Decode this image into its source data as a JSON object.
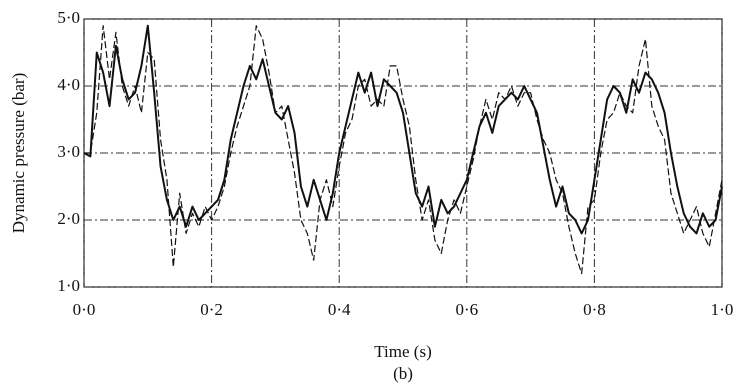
{
  "chart_data": {
    "type": "line",
    "xlabel": "Time (s)",
    "ylabel": "Dynamic pressure (bar)",
    "caption": "(b)",
    "x": [
      0,
      0.01,
      0.02,
      0.03,
      0.04,
      0.05,
      0.06,
      0.07,
      0.08,
      0.09,
      0.1,
      0.11,
      0.12,
      0.13,
      0.14,
      0.15,
      0.16,
      0.17,
      0.18,
      0.19,
      0.2,
      0.21,
      0.22,
      0.23,
      0.24,
      0.25,
      0.26,
      0.27,
      0.28,
      0.29,
      0.3,
      0.31,
      0.32,
      0.33,
      0.34,
      0.35,
      0.36,
      0.37,
      0.38,
      0.39,
      0.4,
      0.41,
      0.42,
      0.43,
      0.44,
      0.45,
      0.46,
      0.47,
      0.48,
      0.49,
      0.5,
      0.51,
      0.52,
      0.53,
      0.54,
      0.55,
      0.56,
      0.57,
      0.58,
      0.59,
      0.6,
      0.61,
      0.62,
      0.63,
      0.64,
      0.65,
      0.66,
      0.67,
      0.68,
      0.69,
      0.7,
      0.71,
      0.72,
      0.73,
      0.74,
      0.75,
      0.76,
      0.77,
      0.78,
      0.79,
      0.8,
      0.81,
      0.82,
      0.83,
      0.84,
      0.85,
      0.86,
      0.87,
      0.88,
      0.89,
      0.9,
      0.91,
      0.92,
      0.93,
      0.94,
      0.95,
      0.96,
      0.97,
      0.98,
      0.99,
      1
    ],
    "series": [
      {
        "color": "#111111",
        "line_style": "solid",
        "values": [
          3.0,
          2.95,
          4.5,
          4.2,
          3.7,
          4.6,
          4.1,
          3.8,
          3.9,
          4.3,
          4.9,
          3.9,
          2.8,
          2.3,
          2.0,
          2.2,
          1.9,
          2.2,
          2.0,
          2.1,
          2.2,
          2.3,
          2.6,
          3.2,
          3.6,
          4.0,
          4.3,
          4.1,
          4.4,
          4.0,
          3.6,
          3.5,
          3.7,
          3.3,
          2.5,
          2.2,
          2.6,
          2.3,
          2.0,
          2.4,
          3.0,
          3.4,
          3.8,
          4.2,
          3.9,
          4.2,
          3.7,
          4.1,
          4.0,
          3.9,
          3.6,
          3.0,
          2.4,
          2.2,
          2.5,
          1.9,
          2.3,
          2.1,
          2.2,
          2.4,
          2.6,
          3.0,
          3.4,
          3.6,
          3.3,
          3.7,
          3.8,
          3.9,
          3.8,
          4.0,
          3.8,
          3.6,
          3.1,
          2.6,
          2.2,
          2.5,
          2.1,
          2.0,
          1.8,
          2.0,
          2.6,
          3.2,
          3.8,
          4.0,
          3.9,
          3.6,
          4.1,
          3.9,
          4.2,
          4.1,
          3.9,
          3.6,
          3.0,
          2.5,
          2.1,
          1.9,
          1.8,
          2.1,
          1.9,
          2.0,
          2.5
        ]
      },
      {
        "color": "#111111",
        "line_style": "dashed",
        "values": [
          3.0,
          3.0,
          3.6,
          4.9,
          4.1,
          4.8,
          4.0,
          3.7,
          4.0,
          3.6,
          4.5,
          4.4,
          3.2,
          2.6,
          1.3,
          2.4,
          1.8,
          2.1,
          1.9,
          2.2,
          2.0,
          2.2,
          2.5,
          3.0,
          3.4,
          3.7,
          4.0,
          4.9,
          4.7,
          4.2,
          3.6,
          3.7,
          3.2,
          2.7,
          2.0,
          1.8,
          1.4,
          2.3,
          2.6,
          2.2,
          2.8,
          3.3,
          3.5,
          4.0,
          4.1,
          3.7,
          3.8,
          3.7,
          4.3,
          4.3,
          3.8,
          3.4,
          2.6,
          2.0,
          2.3,
          1.7,
          1.5,
          2.0,
          2.3,
          2.1,
          2.5,
          2.9,
          3.4,
          3.8,
          3.5,
          3.9,
          3.8,
          4.0,
          3.7,
          3.9,
          3.9,
          3.5,
          3.2,
          3.0,
          2.6,
          2.4,
          1.9,
          1.5,
          1.2,
          2.2,
          2.3,
          3.0,
          3.5,
          3.6,
          3.9,
          3.7,
          3.6,
          4.3,
          4.7,
          3.7,
          3.4,
          3.2,
          2.4,
          2.1,
          1.8,
          2.0,
          2.2,
          1.8,
          1.6,
          2.1,
          2.6
        ]
      }
    ],
    "xlim": [
      0,
      1
    ],
    "ylim": [
      1,
      5
    ],
    "xticks": [
      {
        "value": 0,
        "label": "0·0"
      },
      {
        "value": 0.2,
        "label": "0·2"
      },
      {
        "value": 0.4,
        "label": "0·4"
      },
      {
        "value": 0.6,
        "label": "0·6"
      },
      {
        "value": 0.8,
        "label": "0·8"
      },
      {
        "value": 1,
        "label": "1·0"
      }
    ],
    "yticks": [
      {
        "value": 1,
        "label": "1·0"
      },
      {
        "value": 2,
        "label": "2·0"
      },
      {
        "value": 3,
        "label": "3·0"
      },
      {
        "value": 4,
        "label": "4·0"
      },
      {
        "value": 5,
        "label": "5·0"
      }
    ],
    "grid": true
  }
}
